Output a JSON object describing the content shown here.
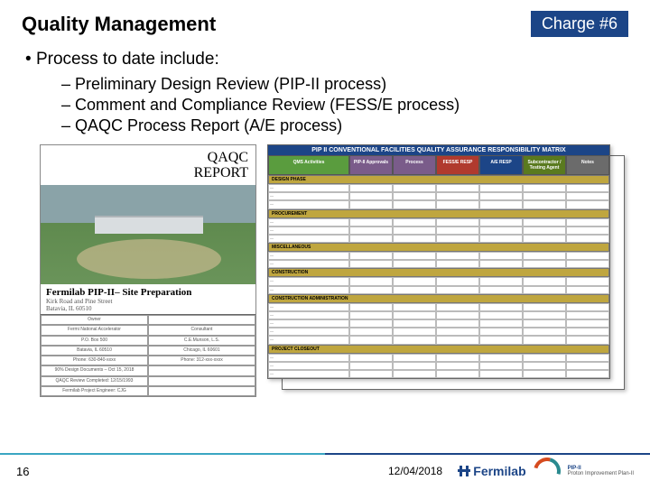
{
  "title": "Quality Management",
  "badge": "Charge #6",
  "b1": "Process to date include:",
  "b2a": "Preliminary Design Review (PIP-II process)",
  "b2b": "Comment and Compliance Review (FESS/E process)",
  "b2c": "QAQC Process Report (A/E process)",
  "doc": {
    "report_label": "QAQC\nREPORT",
    "project_title": "Fermilab PIP-II– Site Preparation",
    "address": "Kirk Road and Pine Street\nBatavia, IL 60510",
    "cells": [
      "Owner",
      "",
      "Fermi National Accelerator",
      "Consultant",
      "P.O. Box 500",
      "C.E.Munson, L.S.",
      "Batavia, IL 60510",
      "Chicago, IL 60601",
      "Phone: 630-840-xxxx",
      "Phone: 312-xxx-xxxx",
      "90% Design Documents – Oct 15, 2018",
      "",
      "QAQC Review Completed: 12/15/1993",
      "",
      "Fermilab Project Engineer: CJG",
      ""
    ]
  },
  "matrix": {
    "title": "PIP II CONVENTIONAL FACILITIES QUALITY ASSURANCE RESPONSIBILITY MATRIX",
    "headers": [
      {
        "label": "QMS Activities",
        "bg": "#5a9c3e"
      },
      {
        "label": "PIP-II Approvals",
        "bg": "#7a5c8a"
      },
      {
        "label": "Process",
        "bg": "#7a5c8a"
      },
      {
        "label": "FESS/E RESP",
        "bg": "#b03a2e"
      },
      {
        "label": "A/E RESP",
        "bg": "#1c4587"
      },
      {
        "label": "Subcontractor / Testing Agent",
        "bg": "#5a7a1f"
      },
      {
        "label": "Notes",
        "bg": "#6b6b6b"
      }
    ],
    "sections": [
      {
        "hdr": "DESIGN PHASE",
        "rows": 3
      },
      {
        "hdr": "PROCUREMENT",
        "rows": 3
      },
      {
        "hdr": "MISCELLANEOUS",
        "rows": 2
      },
      {
        "hdr": "CONSTRUCTION",
        "rows": 2
      },
      {
        "hdr": "CONSTRUCTION ADMINISTRATION",
        "rows": 5
      },
      {
        "hdr": "PROJECT CLOSEOUT",
        "rows": 3
      }
    ]
  },
  "footer": {
    "page": "16",
    "date": "12/04/2018",
    "brand": "Fermilab",
    "pip_line1": "PIP-II",
    "pip_line2": "Proton Improvement Plan-II"
  },
  "colors": {
    "primary": "#1c4587",
    "accent": "#3aa6c2"
  }
}
